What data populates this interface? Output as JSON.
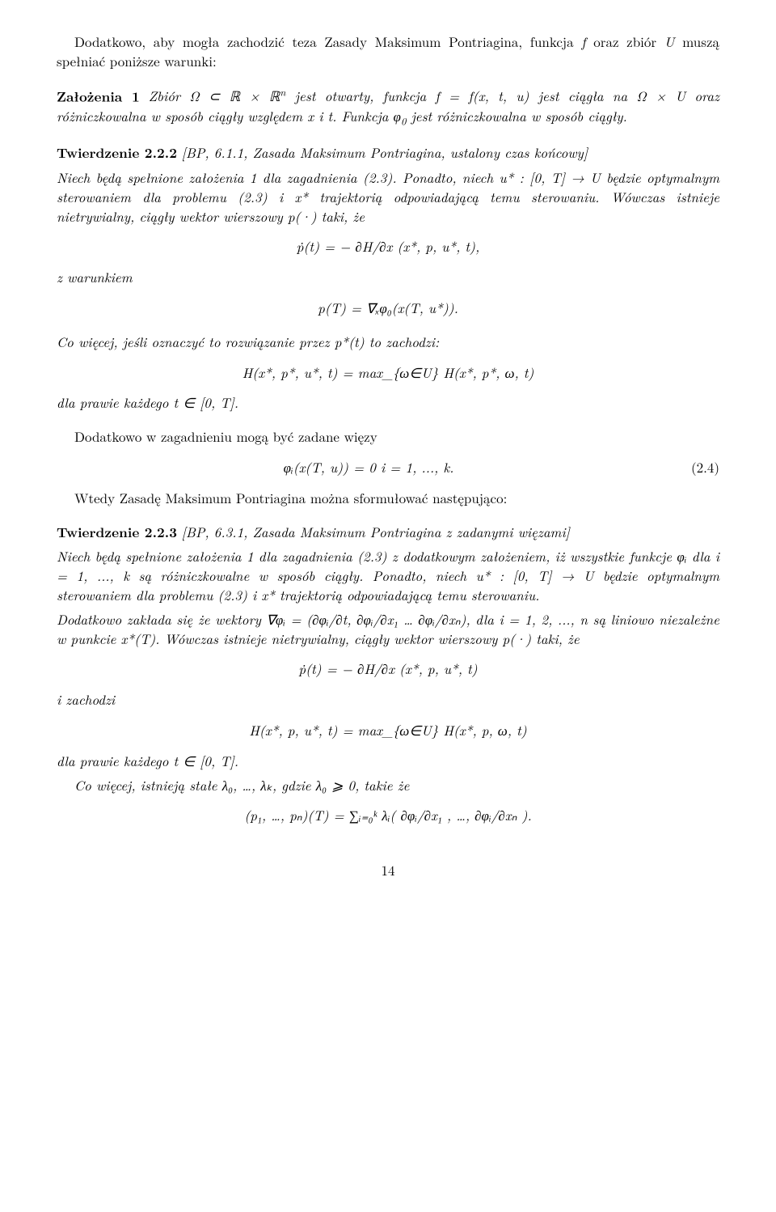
{
  "p1": {
    "line1_a": "Dodatkowo, aby mogła zachodzić teza Zasady Maksimum Pontriagina, funkcja ",
    "f": "f",
    "line1_b": " oraz zbiór ",
    "U": "U",
    "line1_c": " muszą spełniać poniższe warunki:"
  },
  "assump": {
    "heading": "Założenia 1",
    "text_a": " Zbiór Ω ⊂ ℝ × ℝ",
    "sup_n": "n",
    "text_b": " jest otwarty, funkcja f = f(x, t, u) jest ciągła na Ω × U oraz różniczkowalna w sposób ciągły względem x i t. Funkcja φ",
    "sub_0": "0",
    "text_c": " jest różniczkowalna w sposób ciągły."
  },
  "thm222": {
    "heading": "Twierdzenie 2.2.2",
    "cite": " [BP, 6.1.1, Zasada Maksimum Pontriagina, ustalony czas końcowy]",
    "body_a": "Niech będą spełnione założenia 1 dla zagadnienia (2.3). Ponadto, niech u* : [0, T] → U będzie optymalnym sterowaniem dla problemu (2.3) i x* trajektorią odpowiadającą temu sterowaniu. Wówczas istnieje nietrywialny, ciągły wektor wierszowy p(·) taki, że",
    "eq1": "ṗ(t) = − ∂H/∂x (x*, p, u*, t),",
    "with_cond": "z warunkiem",
    "eq2": "p(T) = ∇ₓφ₀(x(T, u*)).",
    "more_a": "Co więcej, jeśli oznaczyć to rozwiązanie przez p*(t) to zachodzi:",
    "eq3": "H(x*, p*, u*, t) = max_{ω∈U} H(x*, p*, ω, t)",
    "almost": "dla prawie każdego t ∈ [0, T]."
  },
  "constraints": {
    "intro": "Dodatkowo w zagadnieniu mogą być zadane więzy",
    "eq": "φᵢ(x(T, u)) = 0      i = 1, ..., k.",
    "eq_num": "(2.4)",
    "then": "Wtedy Zasadę Maksimum Pontriagina można sformułować następująco:"
  },
  "thm223": {
    "heading": "Twierdzenie 2.2.3",
    "cite": " [BP, 6.3.1, Zasada Maksimum Pontriagina z zadanymi więzami]",
    "body_a": "Niech będą spełnione założenia 1 dla zagadnienia (2.3) z dodatkowym założeniem, iż wszystkie funkcje φᵢ dla i = 1, ..., k są różniczkowalne w sposób ciągły. Ponadto, niech u* : [0, T] → U będzie optymalnym sterowaniem dla problemu (2.3) i x* trajektorią odpowiadającą temu sterowaniu.",
    "body_b_a": "Dodatkowo zakłada się że wektory ∇φᵢ = (",
    "partials": "∂φᵢ/∂t, ∂φᵢ/∂x₁ … ∂φᵢ/∂xₙ",
    "body_b_b": "), dla i = 1, 2, ..., n są liniowo niezależne w punkcie x*(T). Wówczas istnieje nietrywialny, ciągły wektor wierszowy p(·) taki, że",
    "eq1": "ṗ(t) = − ∂H/∂x (x*, p, u*, t)",
    "and_holds": "i zachodzi",
    "eq2": "H(x*, p, u*, t) = max_{ω∈U} H(x*, p, ω, t)",
    "almost": "dla prawie każdego t ∈ [0, T].",
    "more": "Co więcej, istnieją stałe λ₀, …, λₖ, gdzie λ₀ ⩾ 0, takie że",
    "eq3_a": "(p₁, …, pₙ)(T) = ",
    "eq3_sum": "∑_{i=0}^{k} λᵢ( ∂φᵢ/∂x₁ , …, ∂φᵢ/∂xₙ ).",
    "eq3": "(p₁, …, pₙ)(T) = ∑ᵢ₌₀ᵏ λᵢ( ∂φᵢ/∂x₁ , …, ∂φᵢ/∂xₙ )."
  },
  "page_number": "14"
}
